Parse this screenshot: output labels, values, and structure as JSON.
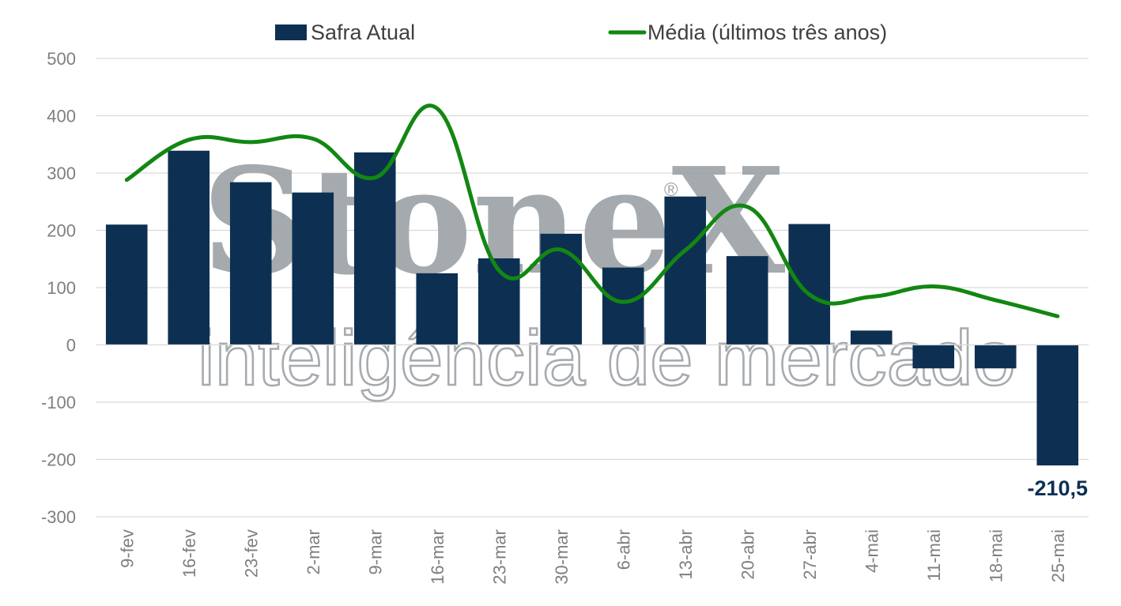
{
  "colors": {
    "bar": "#0d3052",
    "line": "#128712",
    "grid": "#d9d9d9",
    "tick": "#7f7f7f",
    "watermark": "#9ea3a8"
  },
  "watermark": {
    "brand": "StoneX",
    "registered": "®",
    "tagline": "inteligência de mercado"
  },
  "chart_data": {
    "type": "bar",
    "categories": [
      "9-fev",
      "16-fev",
      "23-fev",
      "2-mar",
      "9-mar",
      "16-mar",
      "23-mar",
      "30-mar",
      "6-abr",
      "13-abr",
      "20-abr",
      "27-abr",
      "4-mai",
      "11-mai",
      "18-mai",
      "25-mai"
    ],
    "series": [
      {
        "name": "Safra Atual",
        "type": "bar",
        "color": "#0d3052",
        "values": [
          210,
          339,
          284,
          266,
          336,
          125,
          151,
          194,
          135,
          259,
          155,
          211,
          25,
          -41,
          -41,
          -210.5
        ]
      },
      {
        "name": "Média (últimos três anos)",
        "type": "line",
        "smooth": true,
        "color": "#128712",
        "values": [
          288,
          358,
          354,
          360,
          292,
          413,
          130,
          166,
          75,
          165,
          241,
          88,
          84,
          102,
          78,
          50
        ]
      }
    ],
    "ylim": [
      -300,
      500
    ],
    "yticks": [
      500,
      400,
      300,
      200,
      100,
      0,
      -100,
      -200,
      -300
    ],
    "data_labels": [
      {
        "category": "25-mai",
        "series": "Safra Atual",
        "text": "-210,5"
      }
    ],
    "legend": {
      "position": "top"
    },
    "grid": true,
    "title": "",
    "xlabel": "",
    "ylabel": ""
  }
}
